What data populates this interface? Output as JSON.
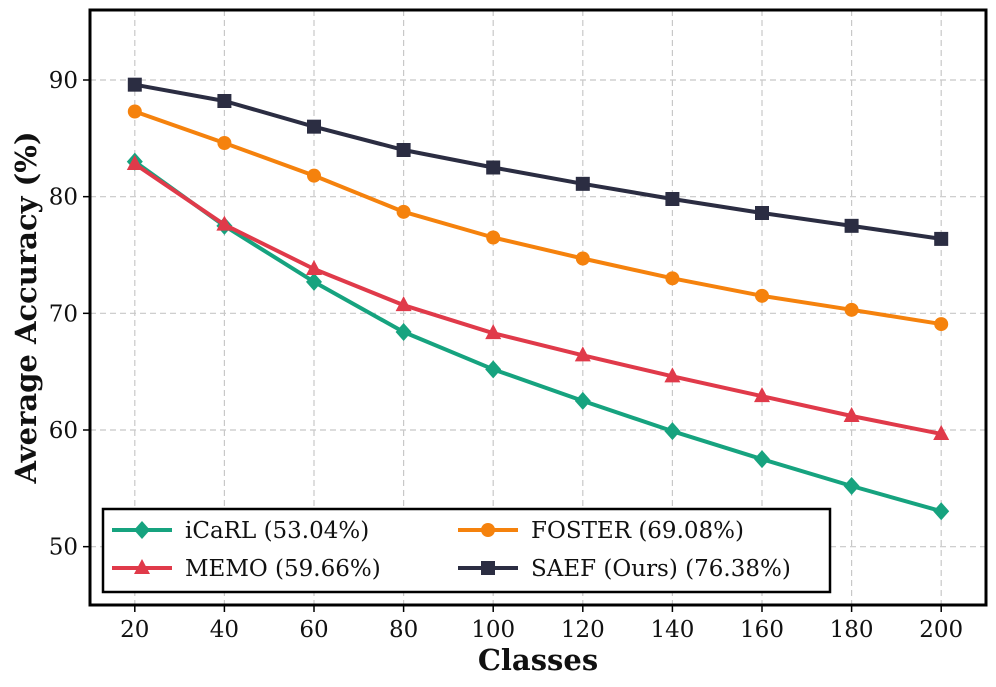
{
  "chart_data": {
    "type": "line",
    "title": "",
    "xlabel": "Classes",
    "ylabel": "Average Accuracy (%)",
    "x": [
      20,
      40,
      60,
      80,
      100,
      120,
      140,
      160,
      180,
      200
    ],
    "xlim": [
      10,
      210
    ],
    "ylim": [
      45,
      96
    ],
    "xticks": [
      20,
      40,
      60,
      80,
      100,
      120,
      140,
      160,
      180,
      200
    ],
    "yticks": [
      50,
      60,
      70,
      80,
      90
    ],
    "grid": true,
    "legend_position": "bottom-left",
    "series": [
      {
        "name": "iCaRL (53.04%)",
        "color": "#16a37f",
        "marker": "diamond",
        "values": [
          83.0,
          77.5,
          72.7,
          68.4,
          65.2,
          62.5,
          59.9,
          57.5,
          55.2,
          53.04
        ]
      },
      {
        "name": "FOSTER (69.08%)",
        "color": "#f5820d",
        "marker": "circle",
        "values": [
          87.3,
          84.6,
          81.8,
          78.7,
          76.5,
          74.7,
          73.0,
          71.5,
          70.3,
          69.08
        ]
      },
      {
        "name": "MEMO (59.66%)",
        "color": "#e03a4a",
        "marker": "triangle",
        "values": [
          82.8,
          77.6,
          73.8,
          70.7,
          68.3,
          66.4,
          64.6,
          62.9,
          61.2,
          59.66
        ]
      },
      {
        "name": "SAEF (Ours) (76.38%)",
        "color": "#2b2d42",
        "marker": "square",
        "values": [
          89.6,
          88.2,
          86.0,
          84.0,
          82.5,
          81.1,
          79.8,
          78.6,
          77.5,
          76.38
        ]
      }
    ]
  }
}
